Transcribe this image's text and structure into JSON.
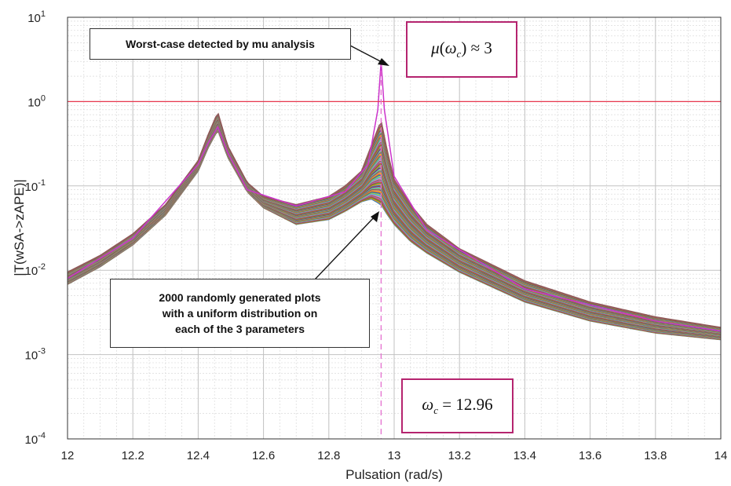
{
  "chart_data": {
    "type": "line",
    "xlabel": "Pulsation (rad/s)",
    "ylabel": "|T(wSA->zAPE)|",
    "xlim": [
      12,
      14
    ],
    "ylim": [
      0.0001,
      10
    ],
    "yscale": "log",
    "grid": true,
    "x_ticks": [
      "12",
      "12.2",
      "12.4",
      "12.6",
      "12.8",
      "13",
      "13.2",
      "13.4",
      "13.6",
      "13.8",
      "14"
    ],
    "y_ticks": [
      {
        "base": "10",
        "exp": "1"
      },
      {
        "base": "10",
        "exp": "0"
      },
      {
        "base": "10",
        "exp": "-1"
      },
      {
        "base": "10",
        "exp": "-2"
      },
      {
        "base": "10",
        "exp": "-3"
      },
      {
        "base": "10",
        "exp": "-4"
      }
    ],
    "threshold_line": {
      "y": 1,
      "color": "#e8384f"
    },
    "critical_line": {
      "x": 12.96,
      "color": "#e46fcf"
    },
    "series_count_shown": 2000,
    "envelope": {
      "x": [
        12.0,
        12.1,
        12.2,
        12.3,
        12.4,
        12.43,
        12.46,
        12.49,
        12.55,
        12.6,
        12.7,
        12.8,
        12.85,
        12.9,
        12.93,
        12.96,
        12.98,
        13.0,
        13.05,
        13.1,
        13.2,
        13.4,
        13.6,
        13.8,
        14.0
      ],
      "upper": [
        0.0095,
        0.015,
        0.027,
        0.06,
        0.2,
        0.4,
        0.75,
        0.3,
        0.11,
        0.075,
        0.06,
        0.075,
        0.1,
        0.15,
        0.3,
        0.6,
        0.25,
        0.12,
        0.06,
        0.035,
        0.018,
        0.0075,
        0.0042,
        0.0028,
        0.0021
      ],
      "lower": [
        0.0068,
        0.011,
        0.02,
        0.045,
        0.15,
        0.28,
        0.46,
        0.22,
        0.085,
        0.055,
        0.035,
        0.04,
        0.05,
        0.065,
        0.07,
        0.06,
        0.045,
        0.035,
        0.022,
        0.016,
        0.0095,
        0.0042,
        0.0025,
        0.0018,
        0.0015
      ]
    },
    "worst_case": {
      "x": [
        12.0,
        12.2,
        12.4,
        12.43,
        12.46,
        12.49,
        12.55,
        12.7,
        12.85,
        12.92,
        12.95,
        12.96,
        12.97,
        13.0,
        13.1,
        13.4,
        13.8,
        14.0
      ],
      "y": [
        0.008,
        0.024,
        0.18,
        0.32,
        0.5,
        0.25,
        0.09,
        0.058,
        0.085,
        0.18,
        0.8,
        3.0,
        0.8,
        0.13,
        0.03,
        0.006,
        0.0025,
        0.0019
      ],
      "color": "#cc33cc"
    }
  },
  "annotations": {
    "worst_case_label": "Worst-case detected by mu analysis",
    "random_plots_label": [
      "2000 randomly generated plots",
      "with a uniform distribution on",
      "each of the 3 parameters"
    ],
    "mu_label": {
      "symbol": "μ",
      "arg": "ω",
      "sub": "c",
      "rel": "≈ 3"
    },
    "omega_label": {
      "symbol": "ω",
      "sub": "c",
      "rel": "= 12.96"
    }
  }
}
